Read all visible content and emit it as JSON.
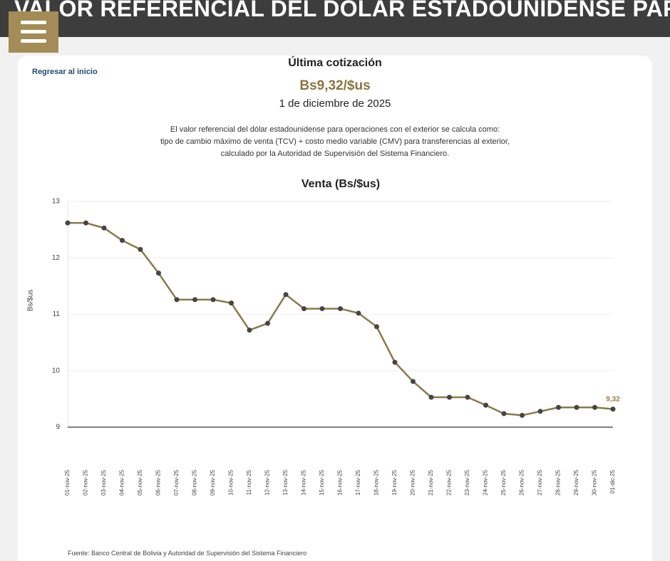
{
  "header": {
    "title": "VALOR REFERENCIAL DEL DÓLAR ESTADOUNIDENSE PARA"
  },
  "back_link": "Regresar al inicio",
  "latest": {
    "heading": "Última cotización",
    "rate": "Bs9,32/$us",
    "date": "1 de diciembre de 2025"
  },
  "description": [
    "El valor referencial del dólar estadounidense para operaciones con el exterior se calcula como:",
    "tipo de cambio máximo de venta (TCV) + costo medio variable (CMV) para transferencias al exterior,",
    "calculado por la Autoridad de Supervisión del Sistema Financiero."
  ],
  "chart_data": {
    "type": "line",
    "title": "Venta (Bs/$us)",
    "y_label": "Bs/$us",
    "categories": [
      "01-nov-25",
      "02-nov-25",
      "03-nov-25",
      "04-nov-25",
      "05-nov-25",
      "06-nov-25",
      "07-nov-25",
      "08-nov-25",
      "09-nov-25",
      "10-nov-25",
      "11-nov-25",
      "12-nov-25",
      "13-nov-25",
      "14-nov-25",
      "15-nov-25",
      "16-nov-25",
      "17-nov-25",
      "18-nov-25",
      "19-nov-25",
      "20-nov-25",
      "21-nov-25",
      "22-nov-25",
      "23-nov-25",
      "24-nov-25",
      "25-nov-25",
      "26-nov-25",
      "27-nov-25",
      "28-nov-25",
      "29-nov-25",
      "30-nov-25",
      "01-dic-25"
    ],
    "series": [
      {
        "name": "Venta",
        "color": "#8a7a4a",
        "marker_color": "#454545",
        "values": [
          12.62,
          12.62,
          12.53,
          12.31,
          12.15,
          11.73,
          11.26,
          11.26,
          11.26,
          11.2,
          10.72,
          10.84,
          11.35,
          11.1,
          11.1,
          11.1,
          11.02,
          10.78,
          10.15,
          9.81,
          9.53,
          9.53,
          9.53,
          9.39,
          9.24,
          9.21,
          9.28,
          9.35,
          9.35,
          9.35,
          9.32
        ],
        "value_labels": [
          null,
          null,
          null,
          null,
          null,
          null,
          null,
          null,
          null,
          null,
          null,
          null,
          null,
          null,
          null,
          null,
          null,
          null,
          null,
          null,
          null,
          null,
          null,
          null,
          null,
          null,
          null,
          null,
          null,
          null,
          "9,32"
        ],
        "label_color": "#9a7f3c"
      }
    ],
    "ylim": [
      9,
      13
    ],
    "yticks": [
      9,
      10,
      11,
      12,
      13
    ],
    "grid": true
  },
  "source": "Fuente: Banco Central de Bolivia y Autoridad de Supervisión del Sistema Financiero"
}
